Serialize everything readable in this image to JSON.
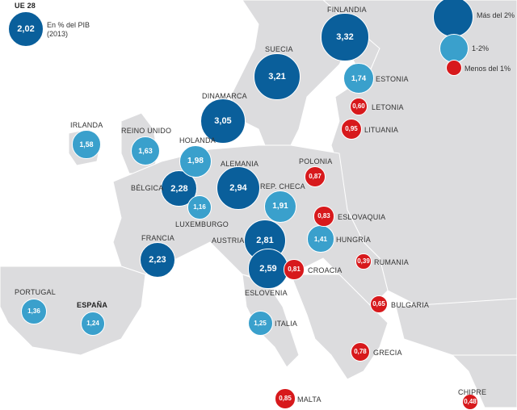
{
  "title": "UE 28",
  "legend": {
    "average_value": "2,02",
    "unit": "En % del PIB",
    "year": "(2013)",
    "categories": [
      {
        "key": "high",
        "label": "Más del 2%",
        "color": "#0a5f9b"
      },
      {
        "key": "mid",
        "label": "1-2%",
        "color": "#3aa0cc"
      },
      {
        "key": "low",
        "label": "Menos del 1%",
        "color": "#d7191c"
      }
    ]
  },
  "countries": [
    {
      "name": "FINLANDIA",
      "value": "3,32",
      "category": "high"
    },
    {
      "name": "SUECIA",
      "value": "3,21",
      "category": "high"
    },
    {
      "name": "DINAMARCA",
      "value": "3,05",
      "category": "high"
    },
    {
      "name": "ALEMANIA",
      "value": "2,94",
      "category": "high"
    },
    {
      "name": "AUSTRIA",
      "value": "2,81",
      "category": "high"
    },
    {
      "name": "ESLOVENIA",
      "value": "2,59",
      "category": "high"
    },
    {
      "name": "BÉLGICA",
      "value": "2,28",
      "category": "high"
    },
    {
      "name": "FRANCIA",
      "value": "2,23",
      "category": "high"
    },
    {
      "name": "HOLANDA",
      "value": "1,98",
      "category": "mid"
    },
    {
      "name": "REP. CHECA",
      "value": "1,91",
      "category": "mid"
    },
    {
      "name": "ESTONIA",
      "value": "1,74",
      "category": "mid"
    },
    {
      "name": "REINO UNIDO",
      "value": "1,63",
      "category": "mid"
    },
    {
      "name": "IRLANDA",
      "value": "1,58",
      "category": "mid"
    },
    {
      "name": "HUNGRÍA",
      "value": "1,41",
      "category": "mid"
    },
    {
      "name": "PORTUGAL",
      "value": "1,36",
      "category": "mid"
    },
    {
      "name": "ITALIA",
      "value": "1,25",
      "category": "mid"
    },
    {
      "name": "ESPAÑA",
      "value": "1,24",
      "category": "mid"
    },
    {
      "name": "LUXEMBURGO",
      "value": "1,16",
      "category": "mid"
    },
    {
      "name": "LITUANIA",
      "value": "0,95",
      "category": "low"
    },
    {
      "name": "POLONIA",
      "value": "0,87",
      "category": "low"
    },
    {
      "name": "MALTA",
      "value": "0,85",
      "category": "low"
    },
    {
      "name": "ESLOVAQUIA",
      "value": "0,83",
      "category": "low"
    },
    {
      "name": "CROACIA",
      "value": "0,81",
      "category": "low"
    },
    {
      "name": "GRECIA",
      "value": "0,78",
      "category": "low"
    },
    {
      "name": "BULGARIA",
      "value": "0,65",
      "category": "low"
    },
    {
      "name": "LETONIA",
      "value": "0,60",
      "category": "low"
    },
    {
      "name": "CHIPRE",
      "value": "0,48",
      "category": "low"
    },
    {
      "name": "RUMANIA",
      "value": "0,39",
      "category": "low"
    }
  ]
}
